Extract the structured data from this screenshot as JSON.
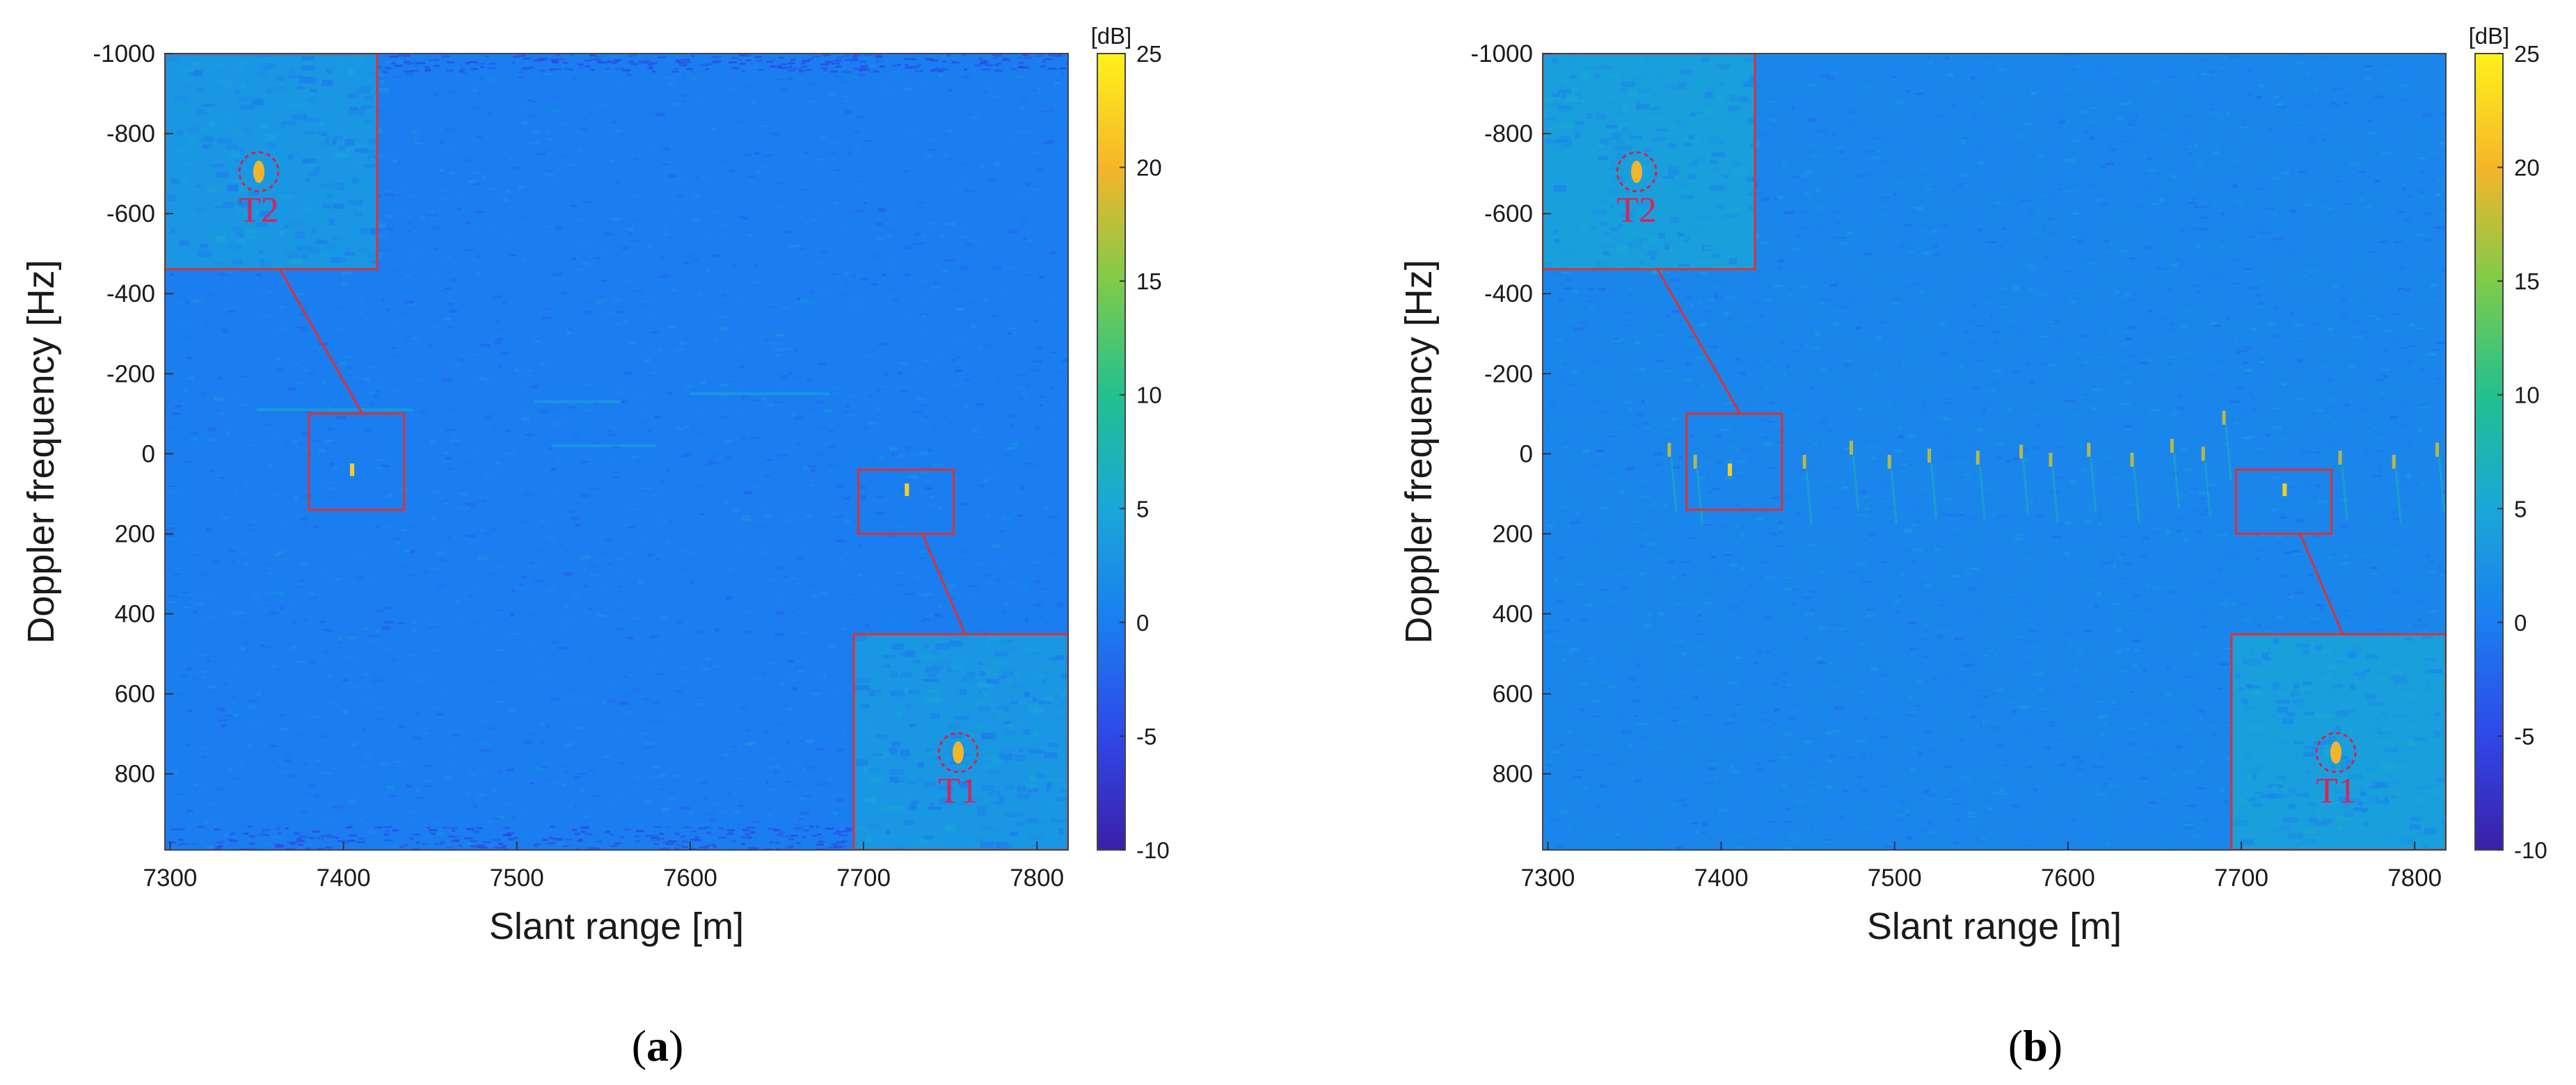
{
  "chart_data": [
    {
      "type": "heatmap",
      "panel_label": "a",
      "xlabel": "Slant range [m]",
      "ylabel": "Doppler frequency [Hz]",
      "xlim": [
        7297,
        7818
      ],
      "ylim": [
        -1000,
        990
      ],
      "y_reversed": true,
      "x_ticks": [
        7300,
        7400,
        7500,
        7600,
        7700,
        7800
      ],
      "y_ticks": [
        -1000,
        -800,
        -600,
        -400,
        -200,
        0,
        200,
        400,
        600,
        800
      ],
      "colorbar": {
        "title": "[dB]",
        "min": -10,
        "max": 25,
        "ticks": [
          25,
          20,
          15,
          10,
          5,
          0,
          -5,
          -10
        ],
        "colormap": [
          "#3b1fa8",
          "#2f48e8",
          "#1a7ef0",
          "#1aa7d8",
          "#22c08f",
          "#7fcb4a",
          "#f5b52a",
          "#fff21a"
        ]
      },
      "background_level_db": 0,
      "targets": [
        {
          "name": "T1",
          "x": 7725,
          "y": 90,
          "box": {
            "x": [
              7697,
              7752
            ],
            "y": [
              40,
              200
            ]
          }
        },
        {
          "name": "T2",
          "x": 7405,
          "y": 40,
          "box": {
            "x": [
              7380,
              7435
            ],
            "y": [
              -100,
              140
            ]
          }
        }
      ],
      "extra_scatterers": [],
      "background_streaks": [
        {
          "x": [
            7350,
            7440
          ],
          "y": -110,
          "value_db": 6
        },
        {
          "x": [
            7510,
            7560
          ],
          "y": -130,
          "value_db": 5
        },
        {
          "x": [
            7520,
            7580
          ],
          "y": -20,
          "value_db": 5
        },
        {
          "x": [
            7600,
            7680
          ],
          "y": -150,
          "value_db": 5
        }
      ],
      "colors": {
        "box": "#e03030",
        "zoom_frame": "#e03030",
        "target_circle": "#e0203a",
        "target_text": "#d6255a"
      }
    },
    {
      "type": "heatmap",
      "panel_label": "b",
      "xlabel": "Slant range [m]",
      "ylabel": "Doppler frequency [Hz]",
      "xlim": [
        7297,
        7818
      ],
      "ylim": [
        -1000,
        990
      ],
      "y_reversed": true,
      "x_ticks": [
        7300,
        7400,
        7500,
        7600,
        7700,
        7800
      ],
      "y_ticks": [
        -1000,
        -800,
        -600,
        -400,
        -200,
        0,
        200,
        400,
        600,
        800
      ],
      "colorbar": {
        "title": "[dB]",
        "min": -10,
        "max": 25,
        "ticks": [
          25,
          20,
          15,
          10,
          5,
          0,
          -5,
          -10
        ],
        "colormap": [
          "#3b1fa8",
          "#2f48e8",
          "#1a7ef0",
          "#1aa7d8",
          "#22c08f",
          "#7fcb4a",
          "#f5b52a",
          "#fff21a"
        ]
      },
      "background_level_db": 1,
      "targets": [
        {
          "name": "T1",
          "x": 7725,
          "y": 90,
          "box": {
            "x": [
              7697,
              7752
            ],
            "y": [
              40,
              200
            ]
          }
        },
        {
          "name": "T2",
          "x": 7405,
          "y": 40,
          "box": {
            "x": [
              7380,
              7435
            ],
            "y": [
              -100,
              140
            ]
          }
        }
      ],
      "extra_scatterers": [
        {
          "x": 7370,
          "y": -10
        },
        {
          "x": 7385,
          "y": 20
        },
        {
          "x": 7448,
          "y": 20
        },
        {
          "x": 7475,
          "y": -15
        },
        {
          "x": 7497,
          "y": 20
        },
        {
          "x": 7520,
          "y": 5
        },
        {
          "x": 7548,
          "y": 10
        },
        {
          "x": 7573,
          "y": -5
        },
        {
          "x": 7590,
          "y": 15
        },
        {
          "x": 7612,
          "y": -10
        },
        {
          "x": 7637,
          "y": 15
        },
        {
          "x": 7660,
          "y": -20
        },
        {
          "x": 7678,
          "y": 0
        },
        {
          "x": 7690,
          "y": -90
        },
        {
          "x": 7757,
          "y": 10
        },
        {
          "x": 7788,
          "y": 20
        },
        {
          "x": 7813,
          "y": -10
        }
      ],
      "background_streaks": [],
      "colors": {
        "box": "#e03030",
        "zoom_frame": "#e03030",
        "target_circle": "#e0203a",
        "target_text": "#d6255a"
      }
    }
  ]
}
